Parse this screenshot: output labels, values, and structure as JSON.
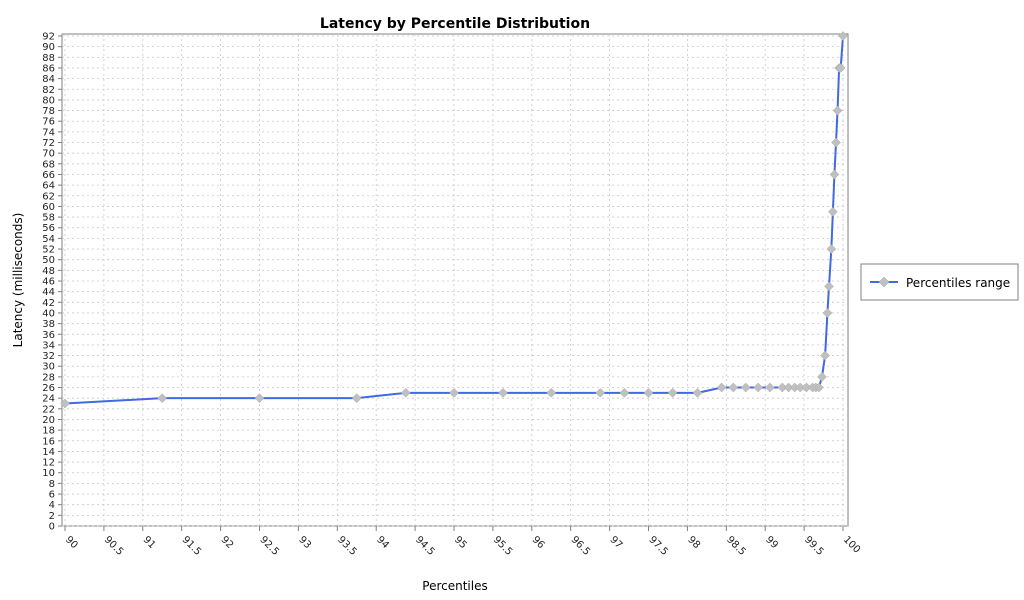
{
  "chart_data": {
    "type": "line",
    "title": "Latency by Percentile Distribution",
    "xlabel": "Percentiles",
    "ylabel": "Latency (milliseconds)",
    "xlim": [
      90,
      100
    ],
    "ylim": [
      0,
      92
    ],
    "x_ticks": [
      "90",
      "90.5",
      "91",
      "91.5",
      "92",
      "92.5",
      "93",
      "93.5",
      "94",
      "94.5",
      "95",
      "95.5",
      "96",
      "96.5",
      "97",
      "97.5",
      "98",
      "98.5",
      "99",
      "99.5",
      "100"
    ],
    "y_ticks": [
      "0",
      "2",
      "4",
      "6",
      "8",
      "10",
      "12",
      "14",
      "16",
      "18",
      "20",
      "22",
      "24",
      "26",
      "28",
      "30",
      "32",
      "34",
      "36",
      "38",
      "40",
      "42",
      "44",
      "46",
      "48",
      "50",
      "52",
      "54",
      "56",
      "58",
      "60",
      "62",
      "64",
      "66",
      "68",
      "70",
      "72",
      "74",
      "76",
      "78",
      "80",
      "82",
      "84",
      "86",
      "88",
      "90",
      "92"
    ],
    "grid": true,
    "legend_position": "right",
    "series": [
      {
        "name": "Percentiles range",
        "color": "#4169e1",
        "marker_color": "#c0c0c0",
        "x": [
          90.0,
          91.25,
          92.5,
          93.75,
          94.38,
          95.0,
          95.63,
          96.25,
          96.88,
          97.19,
          97.5,
          97.81,
          98.13,
          98.44,
          98.59,
          98.75,
          98.91,
          99.06,
          99.22,
          99.3,
          99.38,
          99.45,
          99.53,
          99.61,
          99.65,
          99.69,
          99.73,
          99.77,
          99.8,
          99.82,
          99.85,
          99.87,
          99.89,
          99.91,
          99.93,
          99.95,
          99.97,
          100.0
        ],
        "y": [
          23,
          24,
          24,
          24,
          25,
          25,
          25,
          25,
          25,
          25,
          25,
          25,
          25,
          26,
          26,
          26,
          26,
          26,
          26,
          26,
          26,
          26,
          26,
          26,
          26,
          26,
          28,
          32,
          40,
          45,
          52,
          59,
          66,
          72,
          78,
          86,
          86,
          92
        ]
      }
    ]
  }
}
